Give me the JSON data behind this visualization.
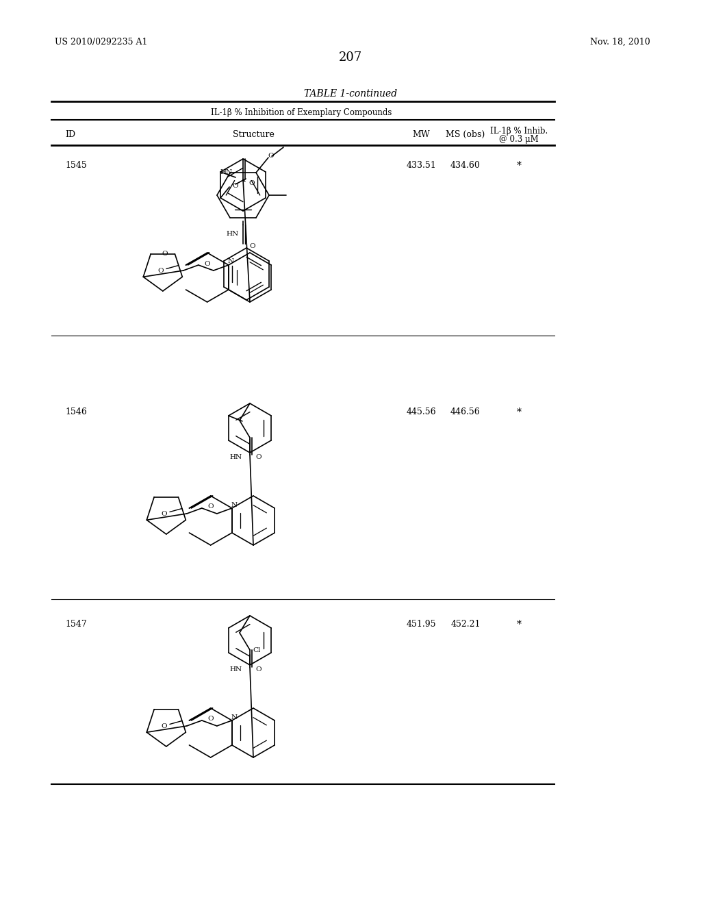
{
  "background_color": "#ffffff",
  "page_number": "207",
  "header_left": "US 2010/0292235 A1",
  "header_right": "Nov. 18, 2010",
  "table_title": "TABLE 1-continued",
  "table_subtitle": "IL-1β % Inhibition of Exemplary Compounds",
  "col_headers": [
    "ID",
    "Structure",
    "MW",
    "MS (obs)",
    "IL-1β % Inhib.\n@ 0.3 μM"
  ],
  "rows": [
    {
      "id": "1545",
      "mw": "433.51",
      "ms_obs": "434.60",
      "inhib": "*"
    },
    {
      "id": "1546",
      "mw": "445.56",
      "ms_obs": "446.56",
      "inhib": "*"
    },
    {
      "id": "1547",
      "mw": "451.95",
      "ms_obs": "452.21",
      "inhib": "*"
    }
  ]
}
